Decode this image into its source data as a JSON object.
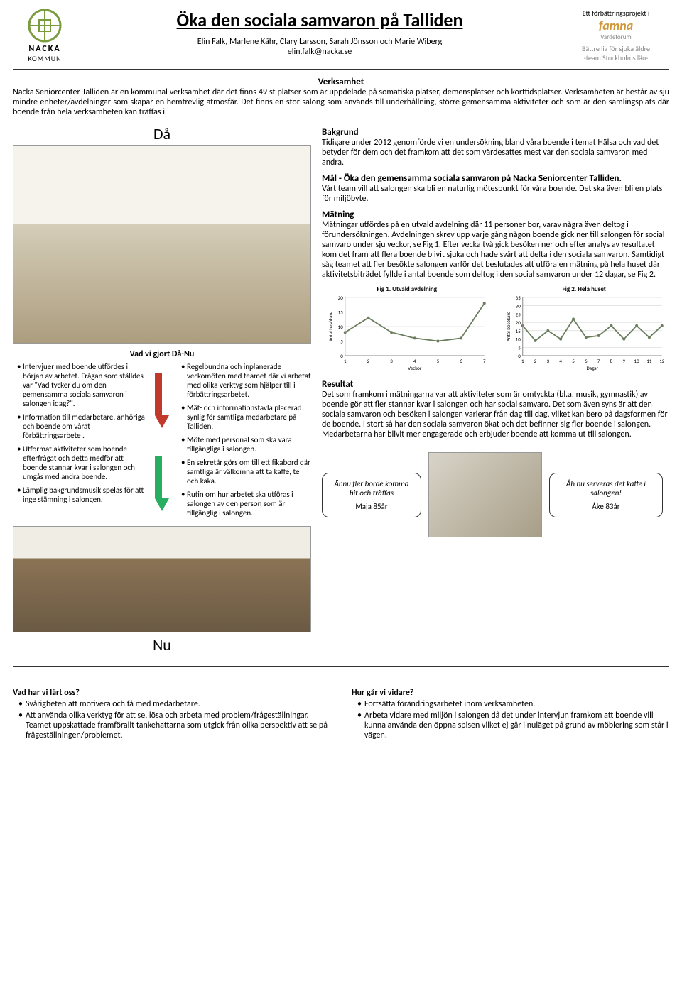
{
  "header": {
    "logo_left_main": "NACKA",
    "logo_left_sub": "KOMMUN",
    "title": "Öka den sociala samvaron på Talliden",
    "authors": "Elin Falk, Marlene Kähr, Clary Larsson, Sarah Jönsson och Marie Wiberg",
    "email": "elin.falk@nacka.se",
    "right_top": "Ett förbättringsprojekt i",
    "famna": "famna",
    "famna_sub": "Värdeforum",
    "right_line1": "Bättre liv för sjuka äldre",
    "right_line2": "-team Stockholms län-"
  },
  "verksamhet": {
    "title": "Verksamhet",
    "body": "Nacka Seniorcenter Talliden är en kommunal verksamhet där det finns 49 st platser som är uppdelade på somatiska platser, demensplatser och korttidsplatser. Verksamheten är består av sju mindre enheter/avdelningar som skapar en hemtrevlig atmosfär. Det finns en stor salong som används till underhållning, större gemensamma aktiviteter och som är den samlingsplats där boende från hela verksamheten kan träffas i."
  },
  "da_label": "Då",
  "nu_label": "Nu",
  "da_nu": {
    "title": "Vad vi gjort Då-Nu",
    "left": [
      "Intervjuer med boende utfördes  i början av arbetet. Frågan som ställdes var  \"Vad tycker du om den gemensamma  sociala samvaron i salongen idag?\".",
      "Information till medarbetare, anhöriga och boende om vårat förbättringsarbete .",
      "Utformat aktiviteter som boende efterfrågat och detta medför att boende stannar kvar i salongen och umgås med andra boende.",
      "Lämplig bakgrundsmusik spelas för att inge stämning i salongen."
    ],
    "right": [
      "Regelbundna och inplanerade veckomöten med teamet där vi arbetat med olika verktyg som hjälper till i förbättringsarbetet.",
      "Mät- och informationstavla placerad synlig för samtliga medarbetare på Talliden.",
      "Möte med personal som ska vara tillgängliga i salongen.",
      "En sekretär görs om till ett fikabord där samtliga är välkomna att ta kaffe, te och kaka.",
      "Rutin om hur arbetet ska utföras i salongen av den person som är tillgänglig i salongen."
    ]
  },
  "bakgrund": {
    "title": "Bakgrund",
    "body": "Tidigare under 2012 genomförde vi en undersökning bland våra boende i temat Hälsa och vad det betyder för dem och det framkom att det som värdesattes mest var den sociala samvaron med andra."
  },
  "mal": {
    "title": "Mål - Öka den gemensamma sociala samvaron på Nacka Seniorcenter Talliden.",
    "body": "Vårt team vill att salongen ska bli en naturlig mötespunkt för våra boende. Det ska även bli en plats för miljöbyte."
  },
  "matning": {
    "title": "Mätning",
    "body": "Mätningar utfördes på en utvald avdelning där 11 personer bor, varav några även deltog i förundersökningen. Avdelningen skrev upp varje gång någon boende gick ner till salongen för social samvaro under sju veckor, se Fig 1. Efter vecka två gick besöken ner och efter analys av resultatet kom det fram att flera boende blivit sjuka och hade svårt att delta i den sociala samvaron. Samtidigt såg teamet att fler besökte salongen varför det beslutades att utföra en mätning på hela huset där aktivitetsbiträdet fyllde i antal boende som deltog i den social samvaron under 12 dagar, se Fig 2."
  },
  "chart1": {
    "title": "Fig 1. Utvald avdelning",
    "ylabel": "Antal besökare",
    "xlabel": "Veckor",
    "x": [
      1,
      2,
      3,
      4,
      5,
      6,
      7
    ],
    "y": [
      8,
      13,
      8,
      6,
      5,
      6,
      18
    ],
    "ylim": [
      0,
      20
    ],
    "ytick": 5,
    "color": "#6b7d5e",
    "bg": "#ffffff",
    "grid": "#cccccc"
  },
  "chart2": {
    "title": "Fig 2. Hela huset",
    "ylabel": "Antal besökare",
    "xlabel": "Dagar",
    "x": [
      1,
      2,
      3,
      4,
      5,
      6,
      7,
      8,
      9,
      10,
      11,
      12
    ],
    "y": [
      18,
      9,
      15,
      10,
      22,
      11,
      12,
      18,
      10,
      18,
      11,
      18
    ],
    "ylim": [
      0,
      35
    ],
    "ytick": 5,
    "color": "#6b7d5e",
    "bg": "#ffffff",
    "grid": "#cccccc"
  },
  "resultat": {
    "title": "Resultat",
    "body": "Det som framkom i mätningarna var att aktiviteter som är omtyckta (bl.a. musik, gymnastik) av boende gör att fler stannar kvar i salongen och har social samvaro. Det som även syns är att den sociala samvaron och besöken i salongen varierar från dag till dag, vilket kan bero på dagsformen för de boende. I stort så har den sociala samvaron ökat och det befinner sig fler boende i salongen. Medarbetarna har blivit mer engagerade  och erbjuder boende att komma ut till salongen."
  },
  "quotes": {
    "left_text": "Ännu fler borde komma hit och träffas",
    "left_attr": "Maja 85år",
    "right_text": "Åh nu serveras det kaffe i salongen!",
    "right_attr": "Åke 83år"
  },
  "footer": {
    "left_title": "Vad har vi lärt oss?",
    "left_items": [
      "Svårigheten att motivera och få med medarbetare.",
      "Att använda olika verktyg för att se, lösa och arbeta med problem/frågeställningar. Teamet uppskattade framförallt tankehattarna som utgick från olika perspektiv att se på frågeställningen/problemet."
    ],
    "right_title": "Hur går vi vidare?",
    "right_items": [
      "Fortsätta förändringsarbetet inom verksamheten.",
      "Arbeta vidare med miljön i salongen då det under intervjun framkom att boende vill kunna använda den öppna spisen vilket ej går i nuläget på grund av möblering som står i vägen."
    ]
  }
}
